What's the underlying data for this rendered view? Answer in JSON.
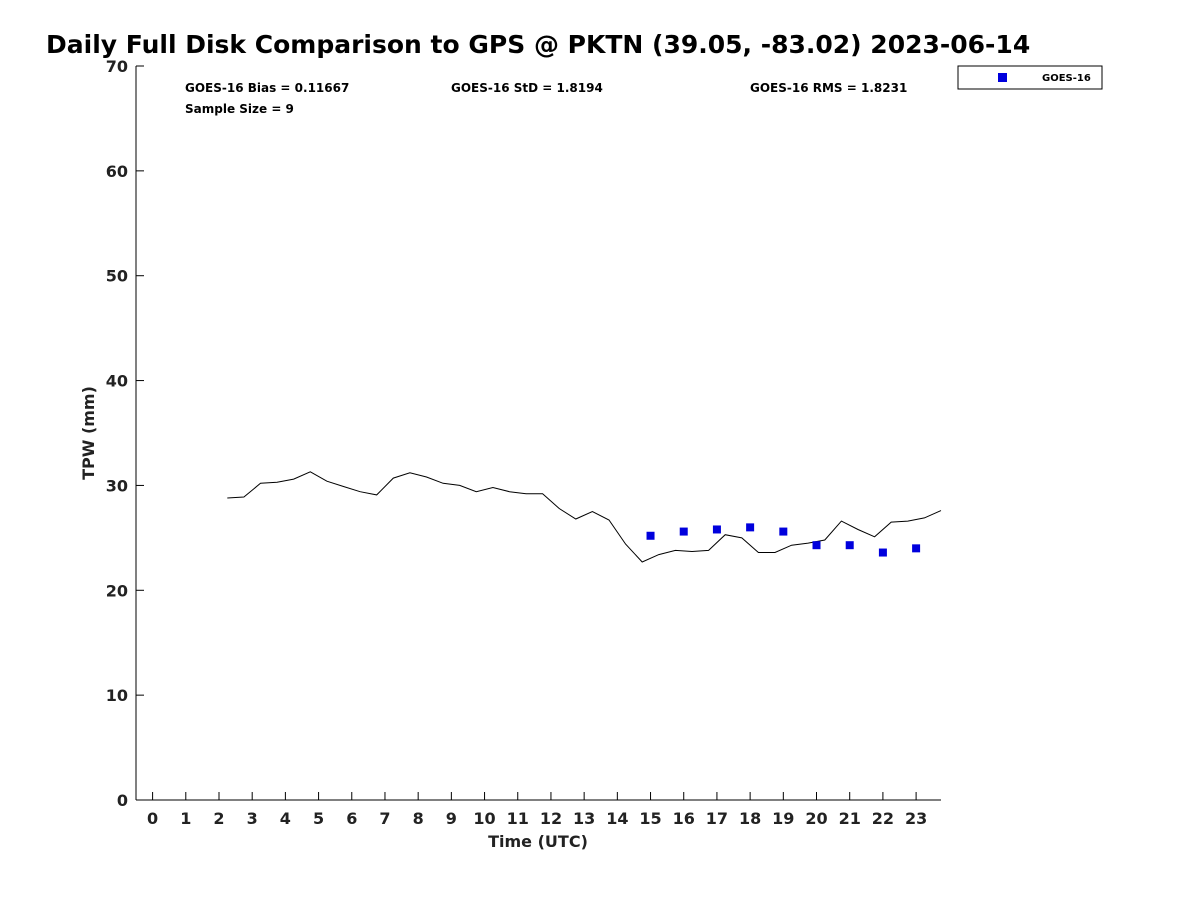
{
  "chart_data": {
    "type": "line",
    "title": "Daily Full Disk Comparison to GPS @ PKTN (39.05, -83.02) 2023-06-14",
    "xlabel": "Time (UTC)",
    "ylabel": "TPW (mm)",
    "xlim": [
      -0.5,
      23.75
    ],
    "ylim": [
      0,
      70
    ],
    "xticks": [
      0,
      1,
      2,
      3,
      4,
      5,
      6,
      7,
      8,
      9,
      10,
      11,
      12,
      13,
      14,
      15,
      16,
      17,
      18,
      19,
      20,
      21,
      22,
      23
    ],
    "yticks": [
      0,
      10,
      20,
      30,
      40,
      50,
      60,
      70
    ],
    "grid": false,
    "legend_position": "top-right, outside plot",
    "stats": {
      "bias": "GOES-16 Bias = 0.11667",
      "std": "GOES-16 StD = 1.8194",
      "rms": "GOES-16 RMS = 1.8231",
      "sample_size": "Sample Size = 9"
    },
    "series": [
      {
        "name": "",
        "kind": "line",
        "color": "#000000",
        "x": [
          2.25,
          2.75,
          3.25,
          3.75,
          4.25,
          4.75,
          5.25,
          5.75,
          6.25,
          6.75,
          7.25,
          7.75,
          8.25,
          8.75,
          9.25,
          9.75,
          10.25,
          10.75,
          11.25,
          11.75,
          12.25,
          12.75,
          13.25,
          13.75,
          14.25,
          14.75,
          15.25,
          15.75,
          16.25,
          16.75,
          17.25,
          17.75,
          18.25,
          18.75,
          19.25,
          19.75,
          20.25,
          20.75,
          21.25,
          21.75,
          22.25,
          22.75,
          23.25,
          23.75
        ],
        "y": [
          28.8,
          28.9,
          30.2,
          30.3,
          30.6,
          31.3,
          30.4,
          29.9,
          29.4,
          29.1,
          30.7,
          31.2,
          30.8,
          30.2,
          30.0,
          29.4,
          29.8,
          29.4,
          29.2,
          29.2,
          27.8,
          26.8,
          27.5,
          26.7,
          24.4,
          22.7,
          23.4,
          23.8,
          23.7,
          23.8,
          25.3,
          25.0,
          23.6,
          23.6,
          24.3,
          24.5,
          24.8,
          26.6,
          25.8,
          25.1,
          26.5,
          26.6,
          26.9,
          27.6
        ]
      },
      {
        "name": "GOES-16",
        "kind": "scatter",
        "marker": "square",
        "color": "#0000dd",
        "x": [
          15,
          16,
          17,
          18,
          19,
          20,
          21,
          22,
          23
        ],
        "y": [
          25.2,
          25.6,
          25.8,
          26.0,
          25.6,
          24.3,
          24.3,
          23.6,
          24.0
        ]
      }
    ]
  }
}
